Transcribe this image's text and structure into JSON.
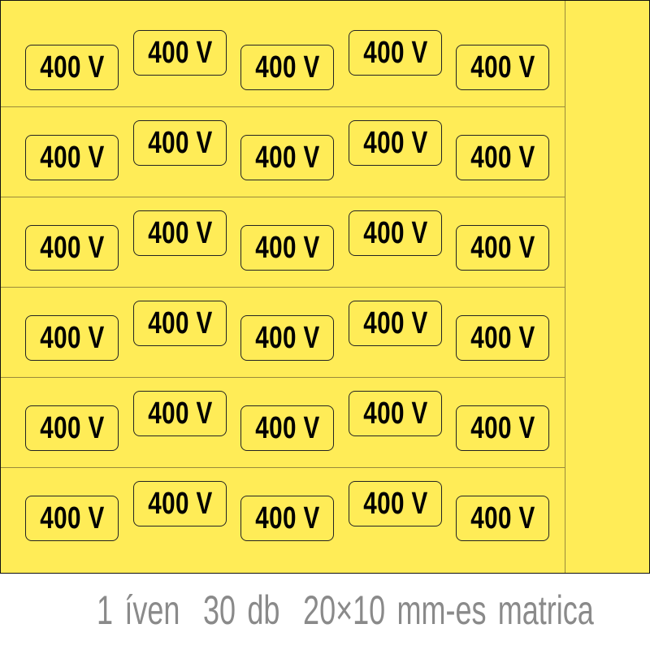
{
  "sheet": {
    "background_color": "#ffec57",
    "rows": 6,
    "columns": 5,
    "label_text": "400 V"
  },
  "caption": "1 íven  30 db  20×10 mm-es matrica"
}
